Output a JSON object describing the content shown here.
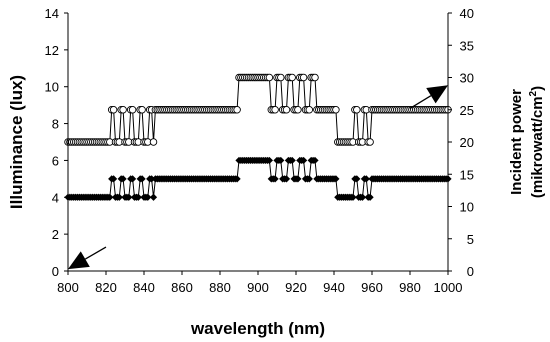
{
  "chart_data": {
    "type": "line",
    "xlabel": "wavelength (nm)",
    "ylabel_left": "Illuminance (lux)",
    "ylabel_right_line1": "Incident power",
    "ylabel_right_line2_prefix": "(mikrowatt/cm",
    "ylabel_right_sup": "2",
    "ylabel_right_line2_suffix": ")",
    "xlim": [
      800,
      1000
    ],
    "ylim_left": [
      0,
      14
    ],
    "ylim_right": [
      0,
      40
    ],
    "x_ticks": [
      "800",
      "820",
      "840",
      "860",
      "880",
      "900",
      "920",
      "940",
      "960",
      "980",
      "1000"
    ],
    "y_left_ticks": [
      "0",
      "2",
      "4",
      "6",
      "8",
      "10",
      "12",
      "14"
    ],
    "y_right_ticks": [
      "0",
      "5",
      "10",
      "15",
      "20",
      "25",
      "30",
      "35",
      "40"
    ],
    "grid": false,
    "series": [
      {
        "marker": "open-circle",
        "axis": "right",
        "segments": [
          {
            "x0": 800,
            "x1": 820,
            "y": 20
          },
          {
            "x0": 820,
            "x1": 846,
            "y": 20,
            "alt": 25,
            "period": 2.5
          },
          {
            "x0": 846,
            "x1": 890,
            "y": 25
          },
          {
            "x0": 890,
            "x1": 904,
            "y": 30
          },
          {
            "x0": 904,
            "x1": 934,
            "y": 30,
            "alt": 25,
            "period": 3
          },
          {
            "x0": 934,
            "x1": 942,
            "y": 25
          },
          {
            "x0": 942,
            "x1": 948,
            "y": 20
          },
          {
            "x0": 948,
            "x1": 960,
            "y": 20,
            "alt": 25,
            "period": 2.5
          },
          {
            "x0": 960,
            "x1": 1000,
            "y": 25
          }
        ]
      },
      {
        "marker": "filled-diamond",
        "axis": "left",
        "segments": [
          {
            "x0": 800,
            "x1": 820,
            "y": 4
          },
          {
            "x0": 820,
            "x1": 846,
            "y": 4,
            "alt": 5,
            "period": 2.5
          },
          {
            "x0": 846,
            "x1": 890,
            "y": 5
          },
          {
            "x0": 890,
            "x1": 904,
            "y": 6
          },
          {
            "x0": 904,
            "x1": 934,
            "y": 6,
            "alt": 5,
            "period": 3
          },
          {
            "x0": 934,
            "x1": 942,
            "y": 5
          },
          {
            "x0": 942,
            "x1": 948,
            "y": 4
          },
          {
            "x0": 948,
            "x1": 960,
            "y": 4,
            "alt": 5,
            "period": 2.5
          },
          {
            "x0": 960,
            "x1": 1000,
            "y": 5
          }
        ]
      }
    ],
    "annotations": [
      {
        "type": "arrow",
        "points_to_axis": "left",
        "from": [
          820,
          1.3
        ],
        "to": [
          800,
          0.1
        ]
      },
      {
        "type": "arrow",
        "points_to_axis": "right",
        "from": [
          980,
          25.2
        ],
        "to": [
          1000,
          28.8
        ]
      }
    ]
  }
}
